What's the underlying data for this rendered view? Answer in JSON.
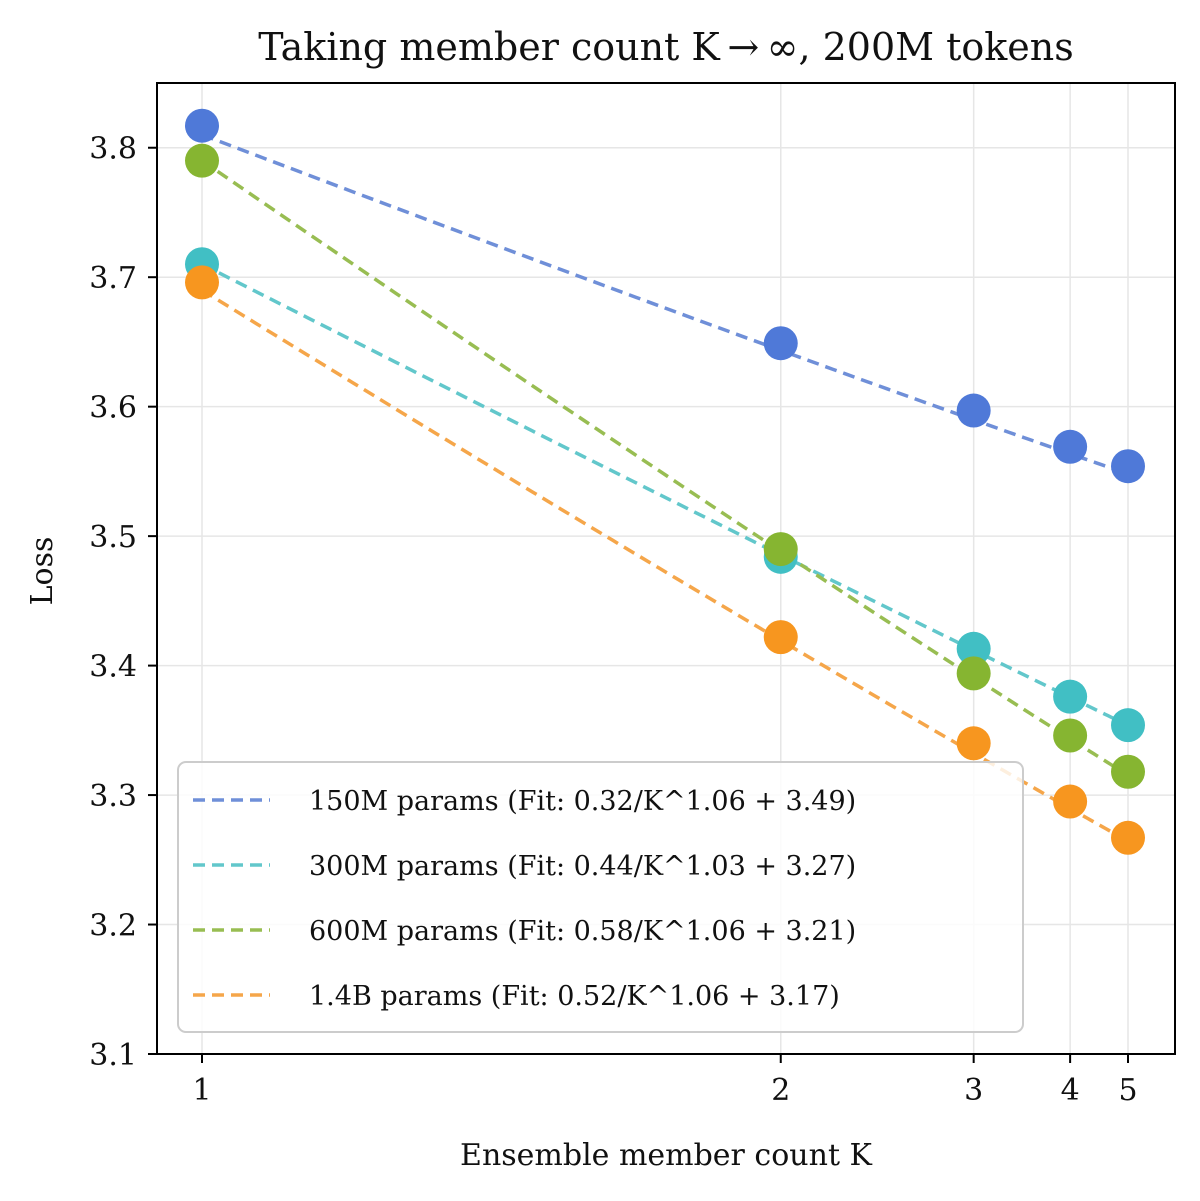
{
  "chart_data": {
    "type": "line",
    "title": "Taking member count K → ∞, 200M tokens",
    "xlabel": "Ensemble member count K",
    "ylabel": "Loss",
    "x_scale": "reciprocal",
    "x_ticks": [
      1,
      2,
      3,
      4,
      5
    ],
    "x_tick_labels": [
      "1",
      "2",
      "3",
      "4",
      "5"
    ],
    "ylim": [
      3.1,
      3.85
    ],
    "y_ticks": [
      3.1,
      3.2,
      3.3,
      3.4,
      3.5,
      3.6,
      3.7,
      3.8
    ],
    "y_tick_labels": [
      "3.1",
      "3.2",
      "3.3",
      "3.4",
      "3.5",
      "3.6",
      "3.7",
      "3.8"
    ],
    "grid": true,
    "legend_position": "lower-left",
    "series": [
      {
        "name": "150M params (Fit: 0.32/K^1.06 + 3.49)",
        "color": "#4f79d8",
        "line_color": "#6f8fd8",
        "x": [
          1,
          2,
          3,
          4,
          5
        ],
        "y": [
          3.817,
          3.649,
          3.597,
          3.569,
          3.554
        ],
        "fit": {
          "a": 0.32,
          "b": 1.06,
          "c": 3.49
        }
      },
      {
        "name": "300M params (Fit: 0.44/K^1.03 + 3.27)",
        "color": "#41bfc4",
        "line_color": "#62c7cb",
        "x": [
          1,
          2,
          3,
          4,
          5
        ],
        "y": [
          3.71,
          3.484,
          3.413,
          3.376,
          3.354
        ],
        "fit": {
          "a": 0.44,
          "b": 1.03,
          "c": 3.27
        }
      },
      {
        "name": "600M params (Fit: 0.58/K^1.06 + 3.21)",
        "color": "#86b531",
        "line_color": "#98bd52",
        "x": [
          1,
          2,
          3,
          4,
          5
        ],
        "y": [
          3.79,
          3.49,
          3.394,
          3.346,
          3.318
        ],
        "fit": {
          "a": 0.58,
          "b": 1.06,
          "c": 3.21
        }
      },
      {
        "name": "1.4B params (Fit: 0.52/K^1.06 + 3.17)",
        "color": "#f7961f",
        "line_color": "#f5a64a",
        "x": [
          1,
          2,
          3,
          4,
          5
        ],
        "y": [
          3.696,
          3.422,
          3.34,
          3.295,
          3.267
        ],
        "fit": {
          "a": 0.52,
          "b": 1.06,
          "c": 3.17
        }
      }
    ]
  }
}
